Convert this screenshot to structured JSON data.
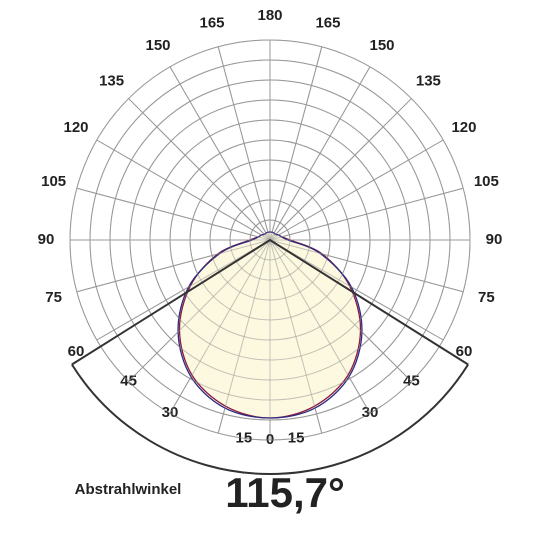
{
  "chart_data": {
    "type": "polar",
    "theta": [
      -180,
      -165,
      -150,
      -135,
      -120,
      -105,
      -90,
      -75,
      -60,
      -45,
      -30,
      -15,
      0,
      15,
      30,
      45,
      60,
      75,
      90,
      105,
      120,
      135,
      150,
      165,
      180
    ],
    "series": [
      {
        "color": "#8b1a3a",
        "fill": "#fdf8dc",
        "values": [
          0.4,
          0.4,
          0.4,
          0.4,
          0.5,
          0.6,
          1.0,
          2.7,
          4.6,
          6.4,
          7.8,
          8.6,
          8.9,
          8.6,
          7.8,
          6.4,
          4.6,
          2.7,
          1.0,
          0.6,
          0.5,
          0.4,
          0.4,
          0.4,
          0.4
        ]
      },
      {
        "color": "#2a2a80",
        "values": [
          0.4,
          0.4,
          0.4,
          0.4,
          0.5,
          0.6,
          0.9,
          2.6,
          4.7,
          6.5,
          7.9,
          8.7,
          8.9,
          8.7,
          7.9,
          6.5,
          4.7,
          2.6,
          0.9,
          0.6,
          0.5,
          0.4,
          0.4,
          0.4,
          0.4
        ]
      }
    ],
    "rlim": [
      0,
      10
    ],
    "rticks": [
      1,
      2,
      3,
      4,
      5,
      6,
      7,
      8,
      9,
      10
    ],
    "thetaticks": [
      0,
      15,
      30,
      45,
      60,
      75,
      90,
      105,
      120,
      135,
      150,
      165,
      180,
      {
        "value": -15,
        "label": "15"
      },
      {
        "value": -30,
        "label": "30"
      },
      {
        "value": -45,
        "label": "45"
      },
      {
        "value": -60,
        "label": "60"
      },
      {
        "value": -75,
        "label": "75"
      },
      {
        "value": -90,
        "label": "90"
      },
      {
        "value": -105,
        "label": "105"
      },
      {
        "value": -120,
        "label": "120"
      },
      {
        "value": -135,
        "label": "135"
      },
      {
        "value": -150,
        "label": "150"
      },
      {
        "value": -165,
        "label": "165"
      }
    ],
    "beam_label": "Abstrahlwinkel",
    "beam_angle": {
      "value": 115.7,
      "label": "115,7°"
    }
  }
}
